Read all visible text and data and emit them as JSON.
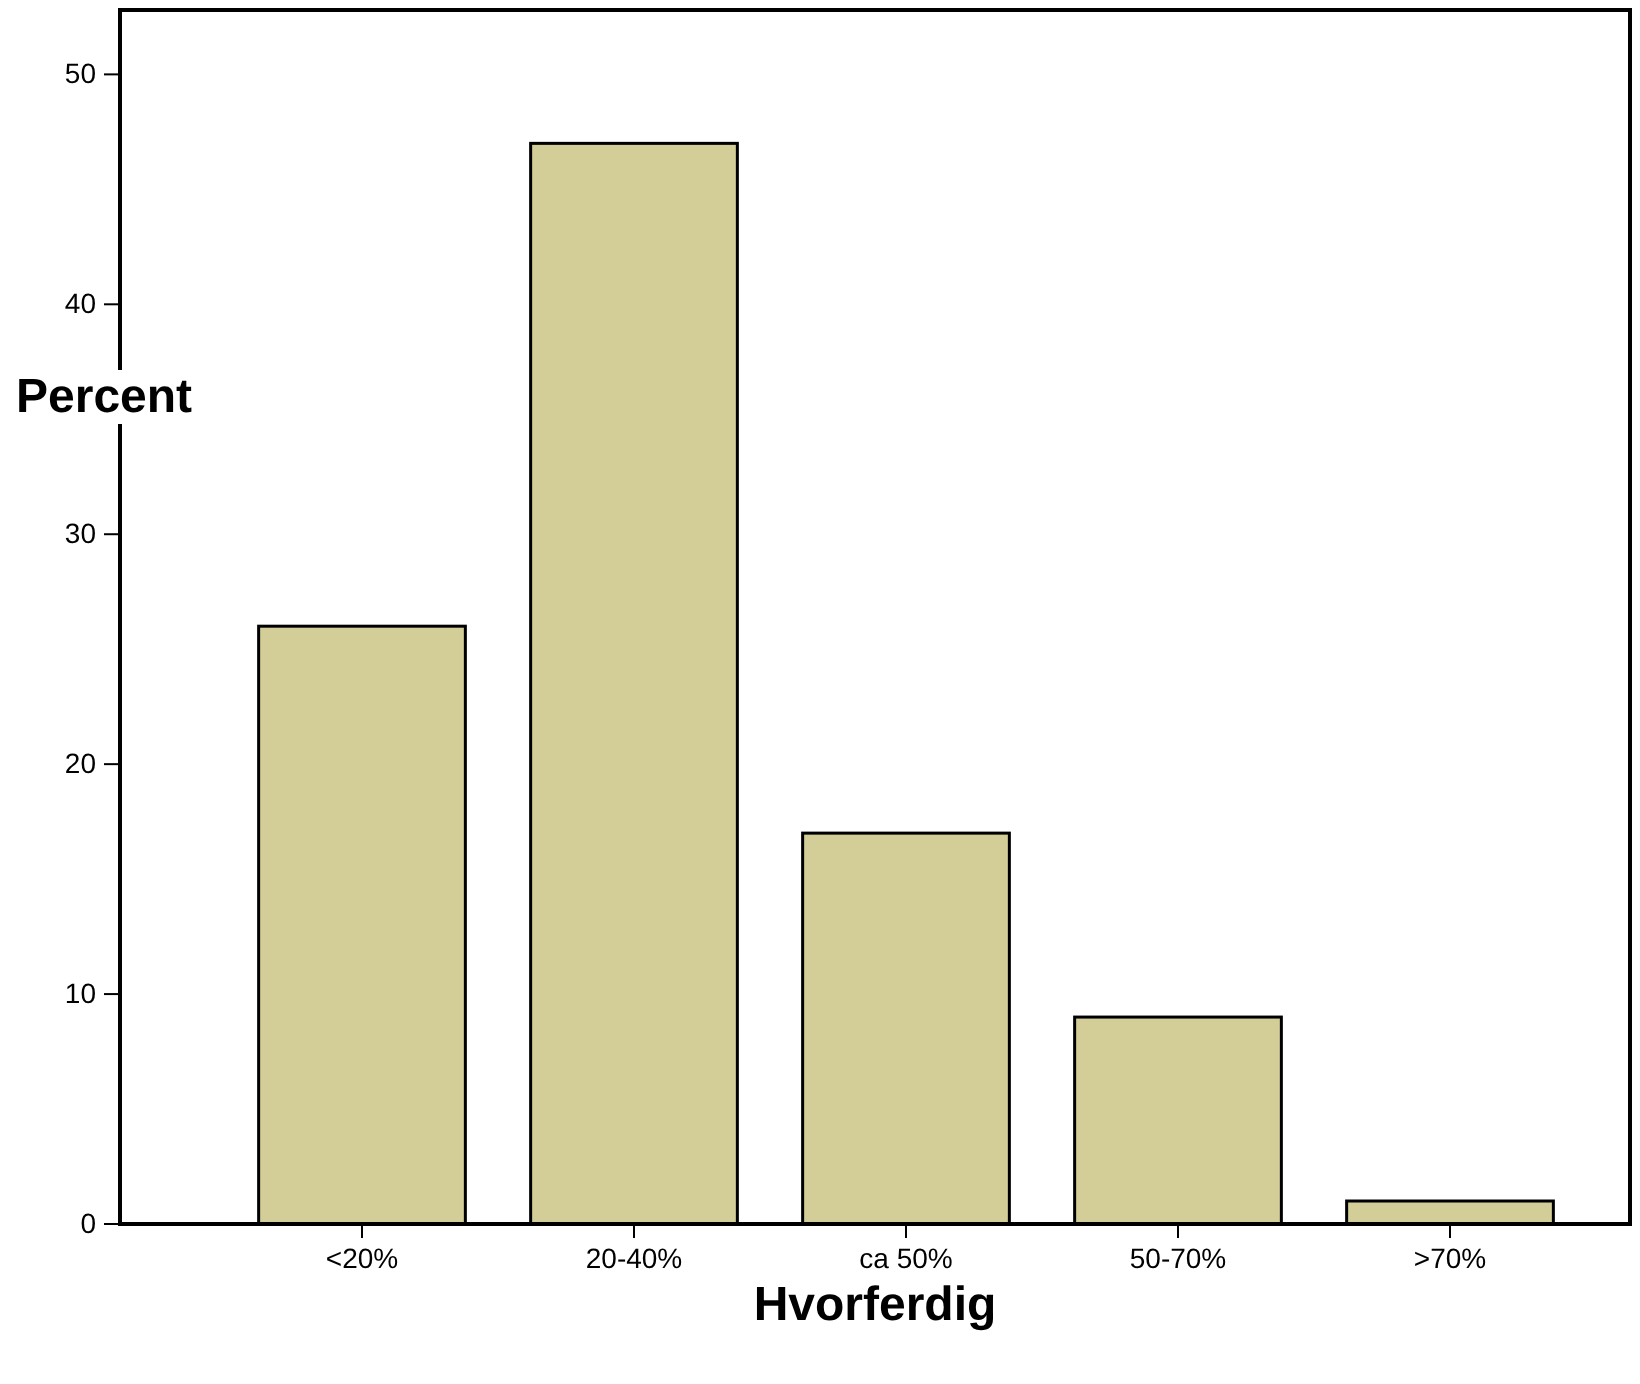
{
  "chart_data": {
    "type": "bar",
    "xlabel": "Hvorferdig",
    "ylabel": "Percent",
    "categories": [
      "<20%",
      "20-40%",
      "ca 50%",
      "50-70%",
      ">70%"
    ],
    "values": [
      26,
      47,
      17,
      9,
      1
    ],
    "color": "#d3ce97",
    "ylim": [
      0,
      52.8
    ],
    "yticks": [
      0,
      10,
      20,
      30,
      40,
      50
    ],
    "grid": false
  }
}
